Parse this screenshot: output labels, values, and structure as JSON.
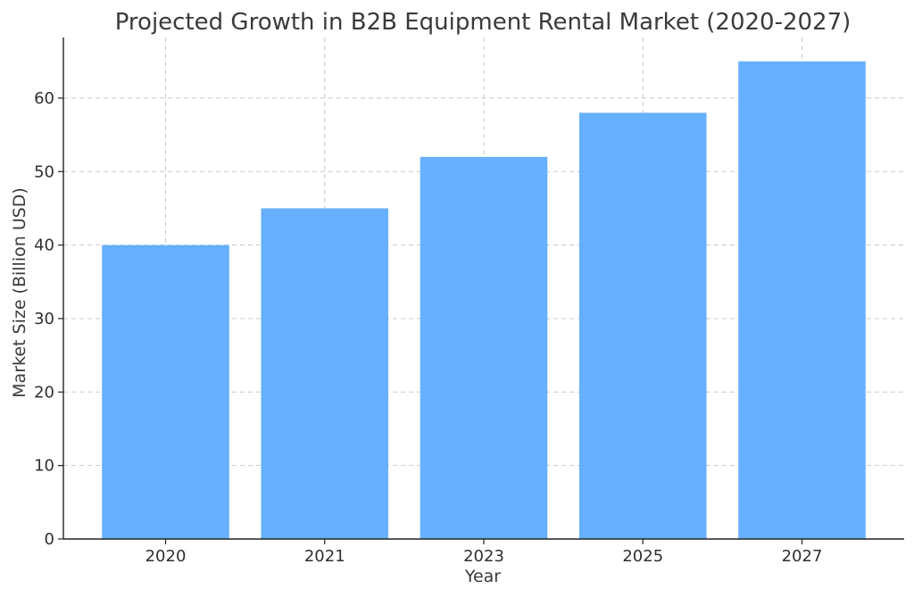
{
  "chart_data": {
    "type": "bar",
    "title": "Projected Growth in B2B Equipment Rental Market (2020-2027)",
    "xlabel": "Year",
    "ylabel": "Market Size (Billion USD)",
    "categories": [
      "2020",
      "2021",
      "2023",
      "2025",
      "2027"
    ],
    "values": [
      40,
      45,
      52,
      58,
      65
    ],
    "ylim": [
      0,
      68.25
    ],
    "yticks": [
      0,
      10,
      20,
      30,
      40,
      50,
      60
    ],
    "grid": true,
    "bar_color": "#66b0ff",
    "legend": "none"
  }
}
